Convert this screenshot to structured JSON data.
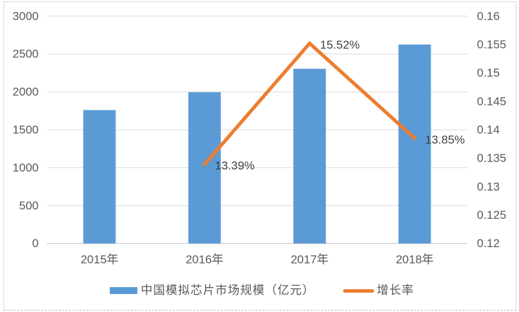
{
  "chart_data": {
    "type": "bar",
    "combo": true,
    "title": "",
    "categories": [
      "2015年",
      "2016年",
      "2017年",
      "2018年"
    ],
    "series": [
      {
        "name": "中国模拟芯片市场规模（亿元）",
        "type": "bar",
        "axis": "left",
        "values": [
          1760,
          1995,
          2305,
          2625
        ]
      },
      {
        "name": "增长率",
        "type": "line",
        "axis": "right",
        "values": [
          null,
          0.1339,
          0.1552,
          0.1385
        ],
        "point_labels": [
          null,
          "13.39%",
          "15.52%",
          "13.85%"
        ]
      }
    ],
    "axes": {
      "left": {
        "min": 0,
        "max": 3000,
        "tick_labels": [
          "3000",
          "2500",
          "2000",
          "1500",
          "1000",
          "500",
          "0"
        ]
      },
      "right": {
        "min": 0.12,
        "max": 0.16,
        "tick_labels": [
          "0.16",
          "0.155",
          "0.15",
          "0.145",
          "0.14",
          "0.135",
          "0.13",
          "0.125",
          "0.12"
        ]
      }
    },
    "grid": true,
    "legend_position": "bottom"
  },
  "legend": {
    "bar_label": "中国模拟芯片市场规模（亿元）",
    "line_label": "增长率"
  },
  "colors": {
    "bar": "#5B9BD5",
    "line": "#ED7D31",
    "grid": "#D9D9D9",
    "axis_line": "#BFBFBF",
    "tick_text": "#595959",
    "data_label_text": "#404040"
  }
}
